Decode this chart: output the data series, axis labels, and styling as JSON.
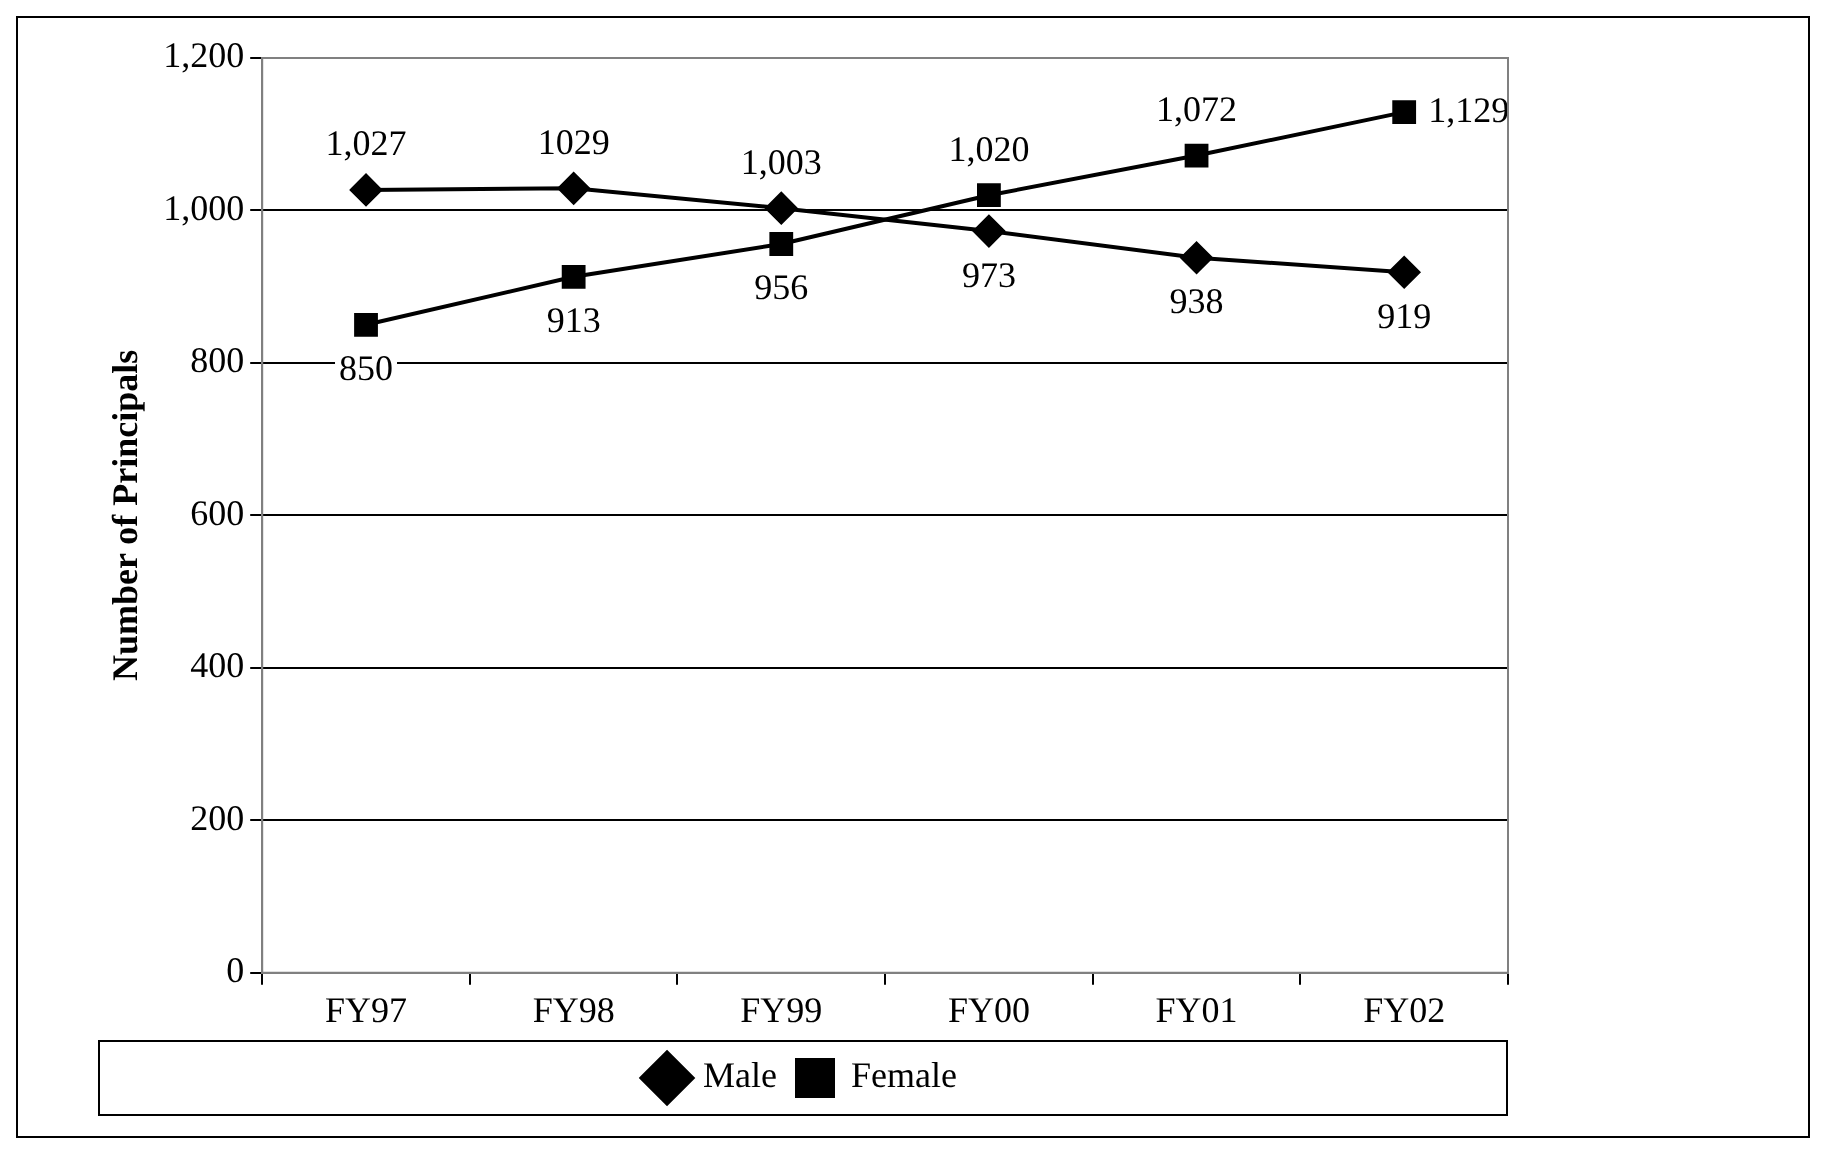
{
  "chart_data": {
    "type": "line",
    "ylabel": "Number of Principals",
    "categories": [
      "FY97",
      "FY98",
      "FY99",
      "FY00",
      "FY01",
      "FY02"
    ],
    "series": [
      {
        "name": "Male",
        "color": "#000000",
        "marker": "diamond",
        "values": [
          1027,
          1029,
          1003,
          973,
          938,
          919
        ],
        "value_labels": [
          "1,027",
          "1029",
          "1,003",
          "973",
          "938",
          "919"
        ]
      },
      {
        "name": "Female",
        "color": "#000000",
        "marker": "square",
        "values": [
          850,
          913,
          956,
          1020,
          1072,
          1129
        ],
        "value_labels": [
          "850",
          "913",
          "956",
          "1,020",
          "1,072",
          "1,129"
        ]
      }
    ],
    "ylim": [
      0,
      1200
    ],
    "yticks": [
      0,
      200,
      400,
      600,
      800,
      {
        "value": 1000,
        "label": "1,000"
      },
      {
        "value": 1200,
        "label": "1,200"
      }
    ],
    "grid": "y",
    "legend": "bottom",
    "line_style": "solid"
  }
}
